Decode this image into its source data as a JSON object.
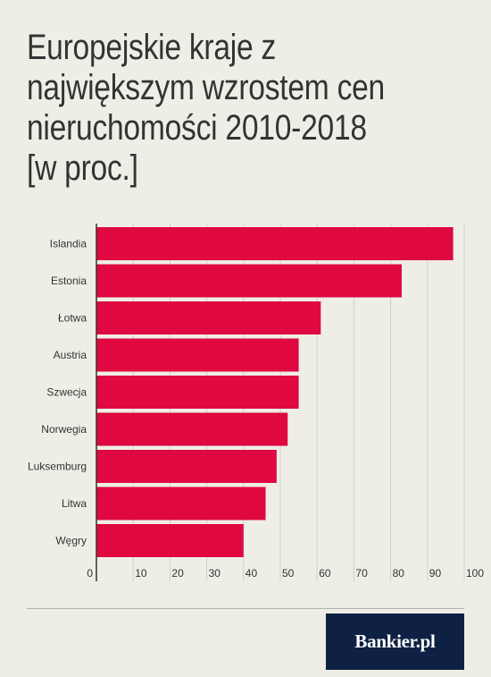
{
  "chart_data": {
    "type": "bar",
    "orientation": "horizontal",
    "title": "Europejskie kraje z\nnajwiększym wzrostem cen\nnieruchomości 2010-2018\n[w proc.]",
    "categories": [
      "Islandia",
      "Estonia",
      "Łotwa",
      "Austria",
      "Szwecja",
      "Norwegia",
      "Luksemburg",
      "Litwa",
      "Węgry"
    ],
    "values": [
      97,
      83,
      61,
      55,
      55,
      52,
      49,
      46,
      40
    ],
    "xlim": [
      0,
      100
    ],
    "xticks": [
      "0",
      "10",
      "20",
      "30",
      "40",
      "50",
      "60",
      "70",
      "80",
      "90",
      "100"
    ],
    "grid": true,
    "bar_color": "#df0840",
    "grid_color": "#d0d0c9",
    "axis_color": "#333333"
  },
  "footer": {
    "logo_text": "Bankier.pl",
    "logo_bg": "#0e2144"
  }
}
